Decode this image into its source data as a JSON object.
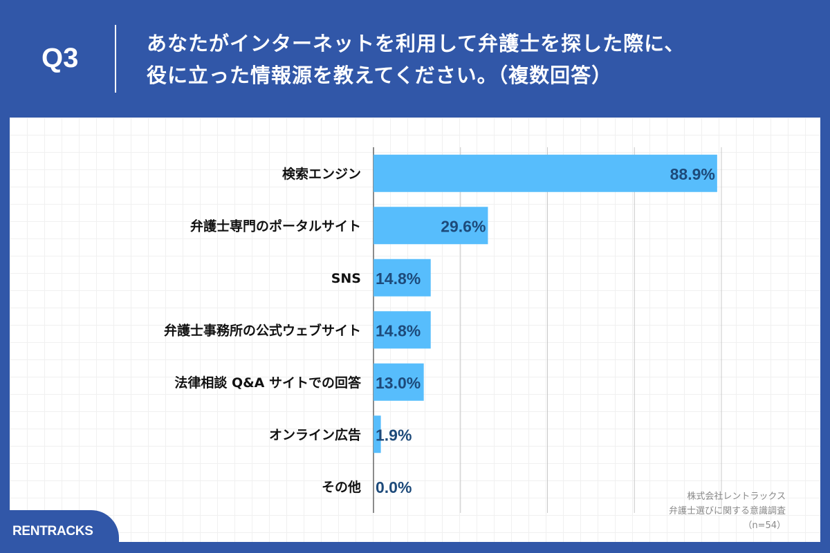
{
  "header": {
    "question_number": "Q3",
    "title_line1": "あなたがインターネットを利用して弁護士を探した際に、",
    "title_line2": "役に立った情報源を教えてください。（複数回答）"
  },
  "source": {
    "company": "株式会社レントラックス",
    "survey": "弁護士選びに関する意識調査",
    "sample": "（n=54）"
  },
  "logo": "RENTRACKS",
  "colors": {
    "background": "#3157a8",
    "bar": "#57bdfc",
    "data_label": "#1d4a7a"
  },
  "chart_data": {
    "type": "bar",
    "orientation": "horizontal",
    "categories": [
      "検索エンジン",
      "弁護士専門のポータルサイト",
      "SNS",
      "弁護士事務所の公式ウェブサイト",
      "法律相談 Q&A サイトでの回答",
      "オンライン広告",
      "その他"
    ],
    "values": [
      88.9,
      29.6,
      14.8,
      14.8,
      13.0,
      1.9,
      0.0
    ],
    "data_labels": [
      "88.9%",
      "29.6%",
      "14.8%",
      "14.8%",
      "13.0%",
      "1.9%",
      "0.0%"
    ],
    "xlim": [
      0,
      90
    ],
    "grid": true,
    "unit": "%"
  }
}
